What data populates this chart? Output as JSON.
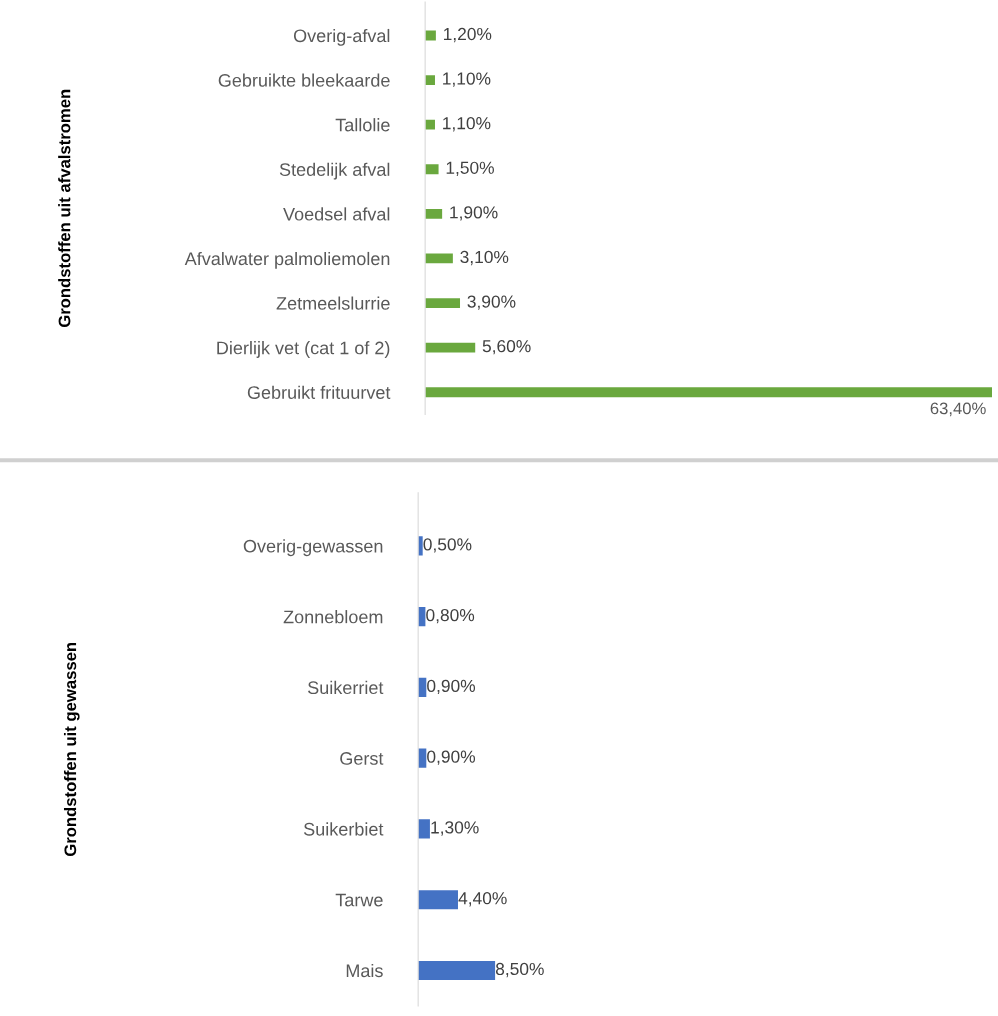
{
  "chart_data": [
    {
      "type": "bar",
      "orientation": "horizontal",
      "ylabel": "Grondstoffen uit afvalstromen",
      "categories": [
        "Overig-afval",
        "Gebruikte bleekaarde",
        "Tallolie",
        "Stedelijk afval",
        "Voedsel afval",
        "Afvalwater palmoliemolen",
        "Zetmeelslurrie",
        "Dierlijk vet (cat 1 of 2)",
        "Gebruikt frituurvet"
      ],
      "values": [
        1.2,
        1.1,
        1.1,
        1.5,
        1.9,
        3.1,
        3.9,
        5.6,
        63.4
      ],
      "value_labels": [
        "1,20%",
        "1,10%",
        "1,10%",
        "1,50%",
        "1,90%",
        "3,10%",
        "3,90%",
        "5,60%",
        "63,40%"
      ],
      "color": "#6aa83e",
      "xlim": [
        0,
        63.4
      ],
      "tick_labels": "y",
      "grid": false,
      "legend": false
    },
    {
      "type": "bar",
      "orientation": "horizontal",
      "ylabel": "Grondstoffen uit gewassen",
      "categories": [
        "Overig-gewassen",
        "Zonnebloem",
        "Suikerriet",
        "Gerst",
        "Suikerbiet",
        "Tarwe",
        "Mais"
      ],
      "values": [
        0.5,
        0.8,
        0.9,
        0.9,
        1.3,
        4.4,
        8.5
      ],
      "value_labels": [
        "0,50%",
        "0,80%",
        "0,90%",
        "0,90%",
        "1,30%",
        "4,40%",
        "8,50%"
      ],
      "color": "#4472c4",
      "tick_labels": "y",
      "grid": false,
      "legend": false
    }
  ]
}
